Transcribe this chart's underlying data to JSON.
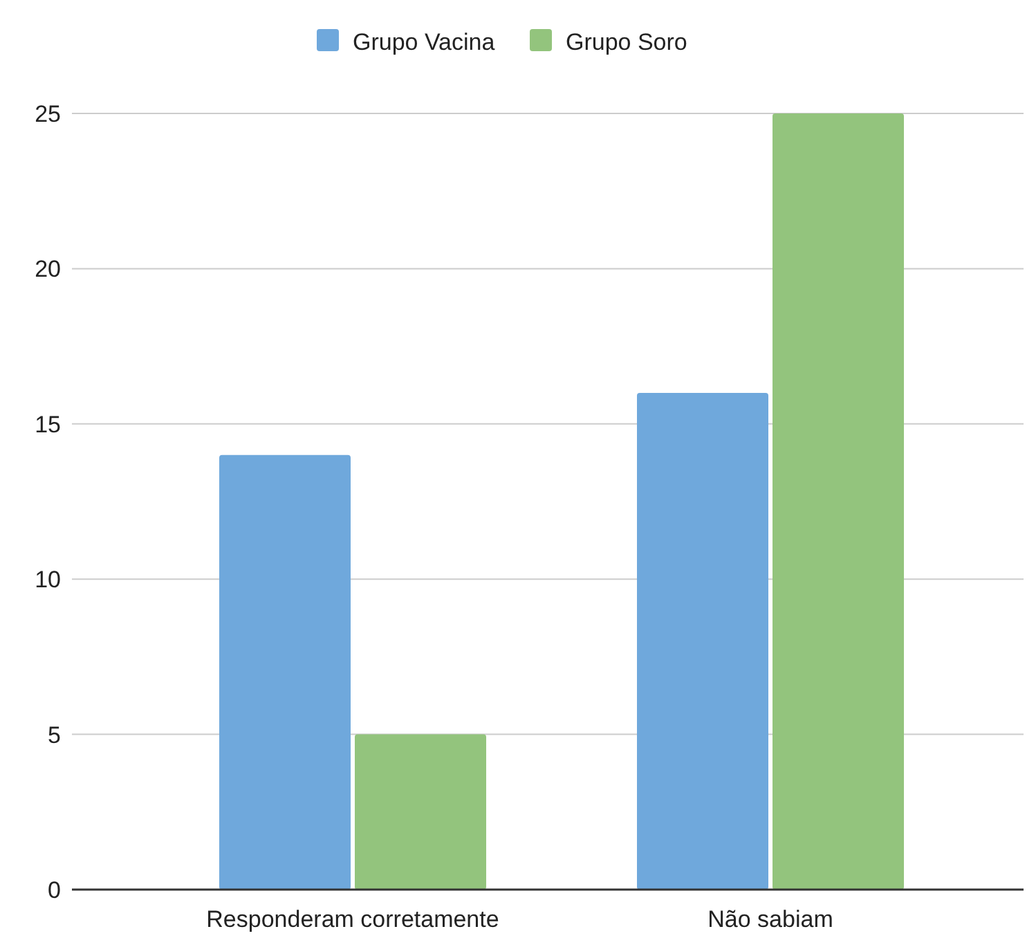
{
  "chart_data": {
    "type": "bar",
    "categories": [
      "Responderam corretamente",
      "Não sabiam"
    ],
    "series": [
      {
        "name": "Grupo Vacina",
        "color": "#6fa8dc",
        "values": [
          14,
          16
        ]
      },
      {
        "name": "Grupo Soro",
        "color": "#93c47d",
        "values": [
          5,
          25
        ]
      }
    ],
    "ylim": [
      0,
      25
    ],
    "yticks": [
      0,
      5,
      10,
      15,
      20,
      25
    ],
    "grid": "y",
    "legend": "top"
  }
}
